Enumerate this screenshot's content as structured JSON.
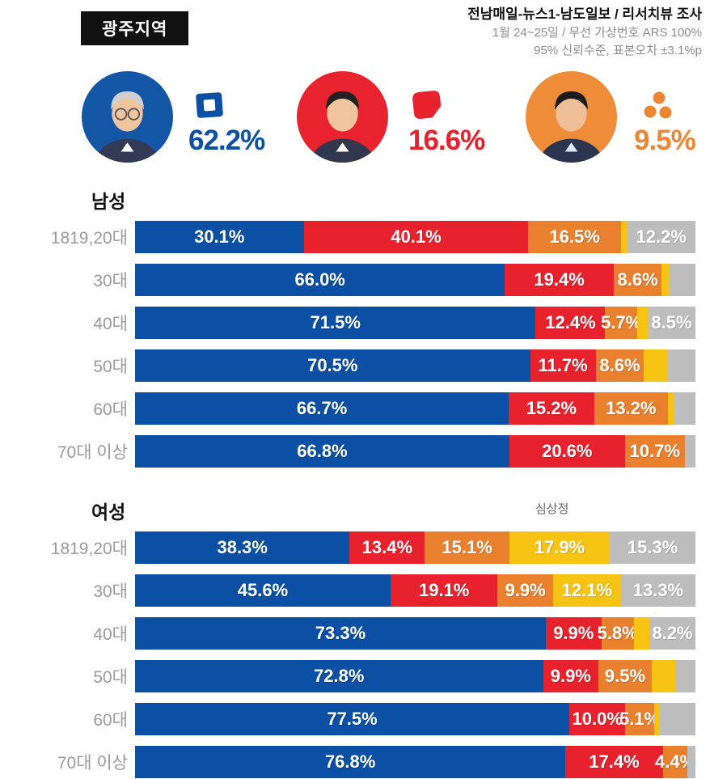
{
  "header": {
    "region_label": "광주지역",
    "source_line": "전남매일-뉴스1-남도일보 / 리서치뷰 조사",
    "method_line": "1월 24~25일 / 무선 가상번호 ARS 100%",
    "confidence_line": "95% 신뢰수준, 표본오차 ±3.1%p"
  },
  "candidates": [
    {
      "icon": "blue-flag-party-logo",
      "pct": "62.2%",
      "color": "#0b50a4",
      "circle_color": "#1356a6"
    },
    {
      "icon": "red-cube-party-logo",
      "pct": "16.6%",
      "color": "#e8222d",
      "circle_color": "#e8232d"
    },
    {
      "icon": "orange-three-dots-party-logo",
      "pct": "9.5%",
      "color": "#ed8631",
      "circle_color": "#ee8c3a"
    }
  ],
  "chart_data": [
    {
      "type": "bar",
      "stacked": true,
      "orientation": "horizontal",
      "title": "남성",
      "unit": "%",
      "xlim": [
        0,
        100
      ],
      "colors": [
        "#0b50a4",
        "#e8222d",
        "#e9802e",
        "#f7c313",
        "#bdbdbd"
      ],
      "series_keys": [
        "blue",
        "red",
        "orange",
        "yellow",
        "gray"
      ],
      "categories": [
        "1819,20대",
        "30대",
        "40대",
        "50대",
        "60대",
        "70대 이상"
      ],
      "rows": [
        {
          "category": "1819,20대",
          "segments": [
            {
              "value": 30.1,
              "label": "30.1%"
            },
            {
              "value": 40.1,
              "label": "40.1%"
            },
            {
              "value": 16.5,
              "label": "16.5%"
            },
            {
              "value": 1.1,
              "label": ""
            },
            {
              "value": 12.2,
              "label": "12.2%"
            }
          ]
        },
        {
          "category": "30대",
          "segments": [
            {
              "value": 66.0,
              "label": "66.0%"
            },
            {
              "value": 19.4,
              "label": "19.4%"
            },
            {
              "value": 8.6,
              "label": "8.6%"
            },
            {
              "value": 1.2,
              "label": ""
            },
            {
              "value": 4.8,
              "label": ""
            }
          ]
        },
        {
          "category": "40대",
          "segments": [
            {
              "value": 71.5,
              "label": "71.5%"
            },
            {
              "value": 12.4,
              "label": "12.4%"
            },
            {
              "value": 5.7,
              "label": "5.7%"
            },
            {
              "value": 1.9,
              "label": ""
            },
            {
              "value": 8.5,
              "label": "8.5%"
            }
          ]
        },
        {
          "category": "50대",
          "segments": [
            {
              "value": 70.5,
              "label": "70.5%"
            },
            {
              "value": 11.7,
              "label": "11.7%"
            },
            {
              "value": 8.6,
              "label": "8.6%"
            },
            {
              "value": 4.1,
              "label": ""
            },
            {
              "value": 5.1,
              "label": ""
            }
          ]
        },
        {
          "category": "60대",
          "segments": [
            {
              "value": 66.7,
              "label": "66.7%"
            },
            {
              "value": 15.2,
              "label": "15.2%"
            },
            {
              "value": 13.2,
              "label": "13.2%"
            },
            {
              "value": 1.0,
              "label": ""
            },
            {
              "value": 3.9,
              "label": ""
            }
          ]
        },
        {
          "category": "70대 이상",
          "segments": [
            {
              "value": 66.8,
              "label": "66.8%"
            },
            {
              "value": 20.6,
              "label": "20.6%"
            },
            {
              "value": 10.7,
              "label": "10.7%"
            },
            {
              "value": 0,
              "label": ""
            },
            {
              "value": 1.9,
              "label": ""
            }
          ]
        }
      ]
    },
    {
      "type": "bar",
      "stacked": true,
      "orientation": "horizontal",
      "title": "여성",
      "unit": "%",
      "xlim": [
        0,
        100
      ],
      "annotation": "심상정",
      "colors": [
        "#0b50a4",
        "#e8222d",
        "#e9802e",
        "#f7c313",
        "#bdbdbd"
      ],
      "series_keys": [
        "blue",
        "red",
        "orange",
        "yellow",
        "gray"
      ],
      "categories": [
        "1819,20대",
        "30대",
        "40대",
        "50대",
        "60대",
        "70대 이상"
      ],
      "rows": [
        {
          "category": "1819,20대",
          "segments": [
            {
              "value": 38.3,
              "label": "38.3%"
            },
            {
              "value": 13.4,
              "label": "13.4%"
            },
            {
              "value": 15.1,
              "label": "15.1%"
            },
            {
              "value": 17.9,
              "label": "17.9%"
            },
            {
              "value": 15.3,
              "label": "15.3%"
            }
          ]
        },
        {
          "category": "30대",
          "segments": [
            {
              "value": 45.6,
              "label": "45.6%"
            },
            {
              "value": 19.1,
              "label": "19.1%"
            },
            {
              "value": 9.9,
              "label": "9.9%"
            },
            {
              "value": 12.1,
              "label": "12.1%"
            },
            {
              "value": 13.3,
              "label": "13.3%"
            }
          ]
        },
        {
          "category": "40대",
          "segments": [
            {
              "value": 73.3,
              "label": "73.3%"
            },
            {
              "value": 9.9,
              "label": "9.9%"
            },
            {
              "value": 5.8,
              "label": "5.8%"
            },
            {
              "value": 2.8,
              "label": ""
            },
            {
              "value": 8.2,
              "label": "8.2%"
            }
          ]
        },
        {
          "category": "50대",
          "segments": [
            {
              "value": 72.8,
              "label": "72.8%"
            },
            {
              "value": 9.9,
              "label": "9.9%"
            },
            {
              "value": 9.5,
              "label": "9.5%"
            },
            {
              "value": 4.2,
              "label": ""
            },
            {
              "value": 3.6,
              "label": ""
            }
          ]
        },
        {
          "category": "60대",
          "segments": [
            {
              "value": 77.5,
              "label": "77.5%"
            },
            {
              "value": 10.0,
              "label": "10.0%"
            },
            {
              "value": 5.1,
              "label": "5.1%"
            },
            {
              "value": 1.0,
              "label": ""
            },
            {
              "value": 6.4,
              "label": ""
            }
          ]
        },
        {
          "category": "70대 이상",
          "segments": [
            {
              "value": 76.8,
              "label": "76.8%"
            },
            {
              "value": 17.4,
              "label": "17.4%"
            },
            {
              "value": 4.4,
              "label": "4.4%"
            },
            {
              "value": 0,
              "label": ""
            },
            {
              "value": 1.4,
              "label": ""
            }
          ]
        }
      ]
    }
  ]
}
